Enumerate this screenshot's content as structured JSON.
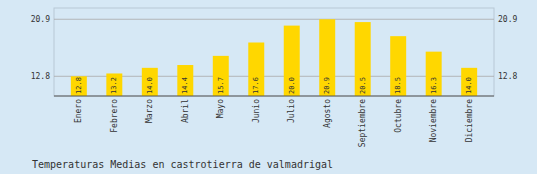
{
  "chart_data": {
    "type": "bar",
    "title": "Temperaturas Medias en castrotierra de valmadrigal",
    "categories": [
      "Enero",
      "Febrero",
      "Marzo",
      "Abril",
      "Mayo",
      "Junio",
      "Julio",
      "Agosto",
      "Septiembre",
      "Octubre",
      "Noviembre",
      "Diciembre"
    ],
    "values": [
      12.8,
      13.2,
      14.0,
      14.4,
      15.7,
      17.6,
      20.0,
      20.9,
      20.5,
      18.5,
      16.3,
      14.0
    ],
    "value_labels": [
      "12.8",
      "13.2",
      "14.0",
      "14.4",
      "15.7",
      "17.6",
      "20.0",
      "20.9",
      "20.5",
      "18.5",
      "16.3",
      "14.0"
    ],
    "color": "#FFD700",
    "ylim": [
      10.0,
      22.5
    ],
    "yticks": [
      12.8,
      20.9
    ],
    "grid": true,
    "data_labels": true
  }
}
